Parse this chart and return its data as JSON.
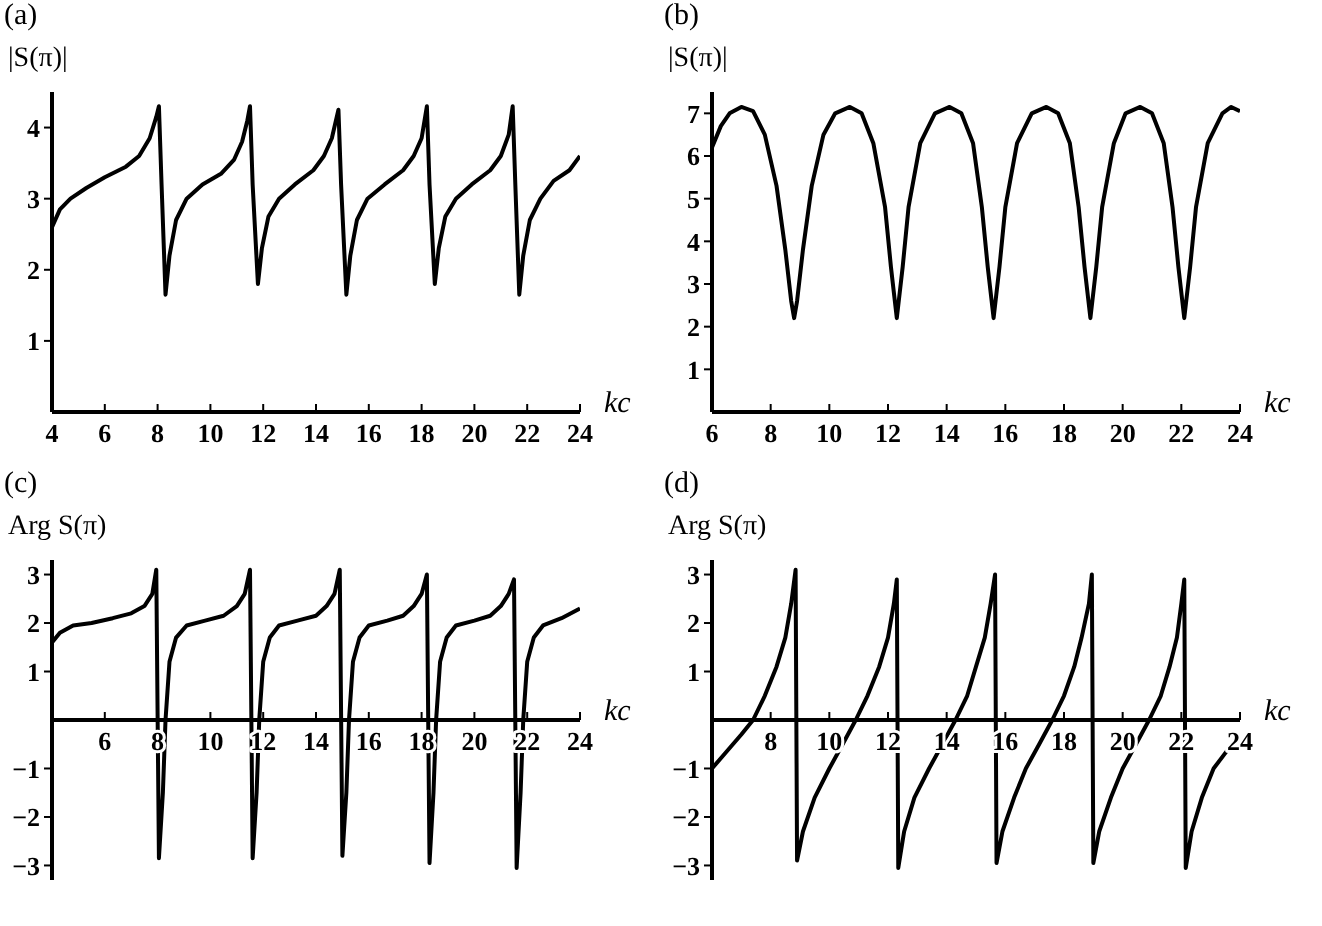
{
  "chart_data": [
    {
      "type": "line",
      "title": "(a)",
      "ylabel": "|S(π)|",
      "xlabel": "kc",
      "color": "#000000",
      "xlim": [
        4,
        24
      ],
      "xticks": [
        4,
        6,
        8,
        10,
        12,
        14,
        16,
        18,
        20,
        22,
        24
      ],
      "ylim": [
        0,
        4.5
      ],
      "yticks": [
        1,
        2,
        3,
        4
      ],
      "x": [
        4,
        4.3,
        4.7,
        5.3,
        6,
        6.8,
        7.3,
        7.7,
        7.95,
        8.05,
        8.15,
        8.3,
        8.45,
        8.7,
        9.1,
        9.7,
        10.4,
        10.9,
        11.2,
        11.4,
        11.5,
        11.6,
        11.8,
        11.95,
        12.2,
        12.6,
        13.2,
        13.9,
        14.3,
        14.6,
        14.85,
        14.95,
        15.15,
        15.3,
        15.55,
        15.95,
        16.6,
        17.3,
        17.7,
        18.0,
        18.2,
        18.3,
        18.5,
        18.65,
        18.9,
        19.3,
        19.9,
        20.6,
        21.0,
        21.3,
        21.45,
        21.55,
        21.7,
        21.85,
        22.1,
        22.5,
        23.0,
        23.6,
        24
      ],
      "values": [
        2.6,
        2.85,
        3.0,
        3.15,
        3.3,
        3.45,
        3.6,
        3.85,
        4.15,
        4.3,
        3.2,
        1.65,
        2.2,
        2.7,
        3.0,
        3.2,
        3.35,
        3.55,
        3.8,
        4.1,
        4.3,
        3.2,
        1.8,
        2.3,
        2.75,
        3.0,
        3.2,
        3.4,
        3.6,
        3.85,
        4.25,
        3.2,
        1.65,
        2.2,
        2.7,
        3.0,
        3.2,
        3.4,
        3.6,
        3.85,
        4.3,
        3.2,
        1.8,
        2.3,
        2.75,
        3.0,
        3.2,
        3.4,
        3.6,
        3.9,
        4.3,
        3.2,
        1.65,
        2.2,
        2.7,
        3.0,
        3.25,
        3.4,
        3.6
      ]
    },
    {
      "type": "line",
      "title": "(b)",
      "ylabel": "|S(π)|",
      "xlabel": "kc",
      "color": "#000000",
      "xlim": [
        6,
        24
      ],
      "xticks": [
        6,
        8,
        10,
        12,
        14,
        16,
        18,
        20,
        22,
        24
      ],
      "ylim": [
        0,
        7.5
      ],
      "yticks": [
        1,
        2,
        3,
        4,
        5,
        6,
        7
      ],
      "x": [
        6,
        6.3,
        6.6,
        7.0,
        7.4,
        7.8,
        8.2,
        8.5,
        8.7,
        8.8,
        8.9,
        9.1,
        9.4,
        9.8,
        10.2,
        10.7,
        11.1,
        11.5,
        11.9,
        12.1,
        12.3,
        12.5,
        12.7,
        13.1,
        13.6,
        14.1,
        14.5,
        14.9,
        15.2,
        15.4,
        15.6,
        15.8,
        16.0,
        16.4,
        16.9,
        17.4,
        17.8,
        18.2,
        18.5,
        18.7,
        18.9,
        19.1,
        19.3,
        19.7,
        20.1,
        20.6,
        21.0,
        21.4,
        21.7,
        21.9,
        22.1,
        22.3,
        22.5,
        22.9,
        23.4,
        23.7,
        24
      ],
      "values": [
        6.2,
        6.7,
        7.0,
        7.15,
        7.05,
        6.5,
        5.3,
        3.8,
        2.6,
        2.2,
        2.6,
        3.8,
        5.3,
        6.5,
        7.0,
        7.15,
        7.0,
        6.3,
        4.8,
        3.4,
        2.2,
        3.4,
        4.8,
        6.3,
        7.0,
        7.15,
        7.0,
        6.3,
        4.8,
        3.4,
        2.2,
        3.4,
        4.8,
        6.3,
        7.0,
        7.15,
        7.0,
        6.3,
        4.8,
        3.4,
        2.2,
        3.4,
        4.8,
        6.3,
        7.0,
        7.15,
        7.0,
        6.3,
        4.8,
        3.4,
        2.2,
        3.4,
        4.8,
        6.3,
        7.0,
        7.15,
        7.05
      ]
    },
    {
      "type": "line",
      "title": "(c)",
      "ylabel": "Arg S(π)",
      "xlabel": "kc",
      "color": "#000000",
      "xlim": [
        4,
        24
      ],
      "xticks": [
        6,
        8,
        10,
        12,
        14,
        16,
        18,
        20,
        22,
        24
      ],
      "ylim": [
        -3.3,
        3.3
      ],
      "yticks": [
        {
          "value": -3,
          "label": "−3"
        },
        {
          "value": -2,
          "label": "−2"
        },
        {
          "value": -1,
          "label": "−1"
        },
        1,
        2,
        3
      ],
      "x": [
        4,
        4.3,
        4.8,
        5.5,
        6.3,
        7.0,
        7.5,
        7.8,
        7.95,
        8.05,
        8.2,
        8.3,
        8.45,
        8.7,
        9.1,
        9.8,
        10.5,
        11.0,
        11.3,
        11.5,
        11.6,
        11.75,
        11.85,
        12.0,
        12.25,
        12.6,
        13.3,
        14.0,
        14.4,
        14.7,
        14.9,
        15.0,
        15.15,
        15.25,
        15.4,
        15.65,
        16.0,
        16.7,
        17.3,
        17.7,
        18.0,
        18.2,
        18.3,
        18.45,
        18.55,
        18.7,
        18.95,
        19.3,
        20.0,
        20.6,
        21.0,
        21.3,
        21.5,
        21.6,
        21.75,
        21.85,
        22.0,
        22.25,
        22.6,
        23.3,
        24
      ],
      "values": [
        1.6,
        1.8,
        1.95,
        2.0,
        2.1,
        2.2,
        2.35,
        2.6,
        3.1,
        -2.85,
        -1.5,
        0,
        1.2,
        1.7,
        1.95,
        2.05,
        2.15,
        2.35,
        2.6,
        3.1,
        -2.85,
        -1.5,
        0,
        1.2,
        1.7,
        1.95,
        2.05,
        2.15,
        2.35,
        2.6,
        3.1,
        -2.8,
        -1.5,
        0,
        1.2,
        1.7,
        1.95,
        2.05,
        2.15,
        2.35,
        2.6,
        3.0,
        -2.95,
        -1.5,
        0,
        1.2,
        1.7,
        1.95,
        2.05,
        2.15,
        2.35,
        2.6,
        2.9,
        -3.05,
        -1.5,
        0,
        1.2,
        1.7,
        1.95,
        2.1,
        2.3
      ]
    },
    {
      "type": "line",
      "title": "(d)",
      "ylabel": "Arg S(π)",
      "xlabel": "kc",
      "color": "#000000",
      "xlim": [
        6,
        24
      ],
      "xticks": [
        8,
        10,
        12,
        14,
        16,
        18,
        20,
        22,
        24
      ],
      "ylim": [
        -3.3,
        3.3
      ],
      "yticks": [
        {
          "value": -3,
          "label": "−3"
        },
        {
          "value": -2,
          "label": "−2"
        },
        {
          "value": -1,
          "label": "−1"
        },
        1,
        2,
        3
      ],
      "x": [
        6,
        6.5,
        7.0,
        7.4,
        7.8,
        8.2,
        8.5,
        8.7,
        8.85,
        8.9,
        9.1,
        9.5,
        10.0,
        10.5,
        10.9,
        11.3,
        11.7,
        12.0,
        12.2,
        12.3,
        12.35,
        12.55,
        12.9,
        13.4,
        13.9,
        14.3,
        14.7,
        15.0,
        15.3,
        15.5,
        15.65,
        15.7,
        15.9,
        16.3,
        16.7,
        17.2,
        17.6,
        18.0,
        18.35,
        18.6,
        18.85,
        18.95,
        19.0,
        19.2,
        19.6,
        20.0,
        20.5,
        20.9,
        21.3,
        21.6,
        21.85,
        22.0,
        22.1,
        22.15,
        22.35,
        22.7,
        23.1,
        23.6,
        24
      ],
      "values": [
        -1.0,
        -0.65,
        -0.3,
        0,
        0.5,
        1.1,
        1.7,
        2.4,
        3.1,
        -2.9,
        -2.3,
        -1.6,
        -1.0,
        -0.45,
        0,
        0.5,
        1.1,
        1.7,
        2.4,
        2.9,
        -3.05,
        -2.3,
        -1.6,
        -1.0,
        -0.45,
        0,
        0.5,
        1.1,
        1.7,
        2.4,
        3.0,
        -2.95,
        -2.3,
        -1.6,
        -1.0,
        -0.45,
        0,
        0.5,
        1.1,
        1.7,
        2.4,
        3.0,
        -2.95,
        -2.3,
        -1.6,
        -1.0,
        -0.45,
        0,
        0.5,
        1.1,
        1.7,
        2.4,
        2.9,
        -3.05,
        -2.3,
        -1.6,
        -1.0,
        -0.6,
        -0.4
      ]
    }
  ]
}
